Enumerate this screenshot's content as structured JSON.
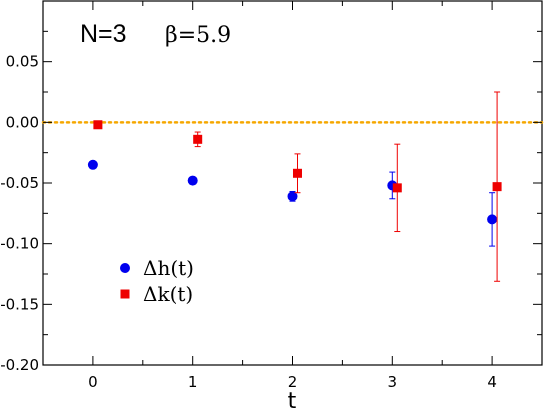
{
  "chart_data": {
    "type": "scatter",
    "xlabel": "t",
    "ylabel": "",
    "xlim": [
      -0.5,
      4.5
    ],
    "ylim": [
      -0.2,
      0.1
    ],
    "xticks": [
      0,
      1,
      2,
      3,
      4
    ],
    "xtick_labels": [
      "0",
      "1",
      "2",
      "3",
      "4"
    ],
    "yticks": [
      -0.2,
      -0.15,
      -0.1,
      -0.05,
      0.0,
      0.05
    ],
    "ytick_labels": [
      "-0.20",
      "-0.15",
      "-0.10",
      "-0.05",
      "0.00",
      "0.05"
    ],
    "reference_line": {
      "y": 0.0,
      "style": "dotted",
      "color": "#f5a700"
    },
    "annotations": [
      {
        "text": "N=3",
        "role": "top-left"
      },
      {
        "text": "β=5.9",
        "role": "top-left"
      }
    ],
    "legend_position": "lower-left",
    "series": [
      {
        "name": "Δh(t)",
        "marker": "circle",
        "color": "#0000ee",
        "x": [
          0,
          1,
          2,
          3,
          4
        ],
        "y": [
          -0.035,
          -0.048,
          -0.061,
          -0.052,
          -0.08
        ],
        "yerr": [
          0.0,
          0.0,
          0.004,
          0.011,
          0.022
        ]
      },
      {
        "name": "Δk(t)",
        "marker": "square",
        "color": "#ee0000",
        "x": [
          0.05,
          1.05,
          2.05,
          3.05,
          4.05
        ],
        "y": [
          -0.002,
          -0.014,
          -0.042,
          -0.054,
          -0.053
        ],
        "yerr": [
          0.0,
          0.006,
          0.016,
          0.036,
          0.078
        ]
      }
    ]
  }
}
